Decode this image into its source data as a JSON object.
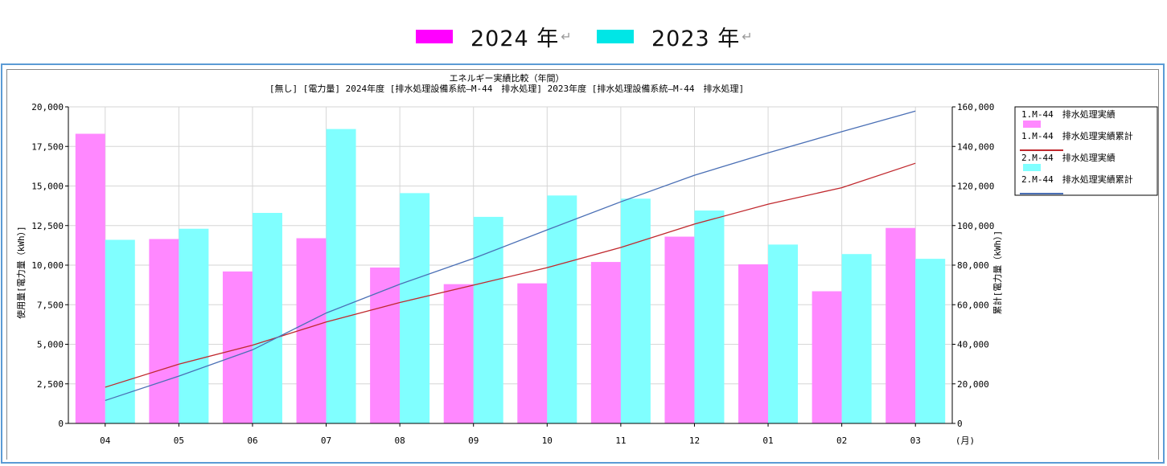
{
  "top_legend": {
    "items": [
      {
        "label": "2024 年",
        "mark": "↵",
        "color": "#ff00ff"
      },
      {
        "label": "2023 年",
        "mark": "↵",
        "color": "#00e6e6"
      }
    ]
  },
  "chart_data": {
    "type": "bar",
    "title": "エネルギー実績比較（年間）",
    "subtitle": "[無し] [電力量] 2024年度 [排水処理設備系統―M-44　排水処理] 2023年度 [排水処理設備系統―M-44　排水処理]",
    "categories": [
      "04",
      "05",
      "06",
      "07",
      "08",
      "09",
      "10",
      "11",
      "12",
      "01",
      "02",
      "03"
    ],
    "x_unit": "(月)",
    "ylabel": "使用量[電力量（kWh）]",
    "ylabel_right": "累計[電力量（kWh）]",
    "ylim": [
      0,
      20000
    ],
    "ylim_right": [
      0,
      160000
    ],
    "yticks": [
      "0",
      "2,500",
      "5,000",
      "7,500",
      "10,000",
      "12,500",
      "15,000",
      "17,500",
      "20,000"
    ],
    "yticks_right": [
      "0",
      "20,000",
      "40,000",
      "60,000",
      "80,000",
      "100,000",
      "120,000",
      "140,000",
      "160,000"
    ],
    "grid": true,
    "legend_position": "right",
    "series": [
      {
        "name": "1.M-44　排水処理実績",
        "kind": "bar",
        "axis": "left",
        "color": "#ff88ff",
        "values": [
          18300,
          11650,
          9600,
          11700,
          9850,
          8800,
          8850,
          10200,
          11800,
          10050,
          8350,
          12350
        ]
      },
      {
        "name": "1.M-44　排水処理実績累計",
        "kind": "line",
        "axis": "right",
        "color": "#c0282d",
        "values": [
          18300,
          29950,
          39550,
          51250,
          61100,
          69900,
          78750,
          88950,
          100750,
          110800,
          119150,
          131500
        ]
      },
      {
        "name": "2.M-44　排水処理実績",
        "kind": "bar",
        "axis": "left",
        "color": "#80ffff",
        "values": [
          11600,
          12300,
          13300,
          18600,
          14550,
          13050,
          14400,
          14200,
          13450,
          11300,
          10700,
          10400
        ]
      },
      {
        "name": "2.M-44　排水処理実績累計",
        "kind": "line",
        "axis": "right",
        "color": "#4a6fb5",
        "values": [
          11600,
          23900,
          37200,
          55800,
          70350,
          83400,
          97800,
          112000,
          125450,
          136750,
          147450,
          157850
        ]
      }
    ]
  }
}
